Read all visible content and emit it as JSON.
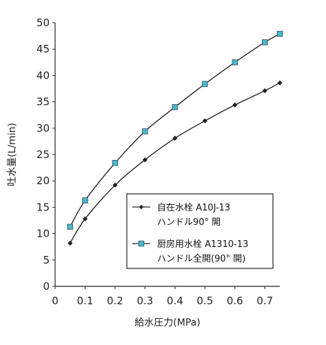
{
  "chart_data": {
    "type": "line",
    "title": "",
    "xlabel": "給水圧力(MPa)",
    "ylabel": "吐水量(L/min)",
    "xlim": [
      0,
      0.75
    ],
    "ylim": [
      0,
      50
    ],
    "x_ticks": [
      "0",
      "0.1",
      "0.2",
      "0.3",
      "0.4",
      "0.5",
      "0.6",
      "0.7"
    ],
    "y_ticks": [
      "0",
      "5",
      "10",
      "15",
      "20",
      "25",
      "30",
      "35",
      "40",
      "45",
      "50"
    ],
    "grid": false,
    "legend_position": "bottom-right",
    "series": [
      {
        "name_lines": [
          "自在水栓 A10J-13",
          "ハンドル90° 開"
        ],
        "marker": "diamond",
        "color": "#222222",
        "marker_color": "#222222",
        "x": [
          0.05,
          0.1,
          0.2,
          0.3,
          0.4,
          0.5,
          0.6,
          0.7,
          0.75
        ],
        "y": [
          8.2,
          12.8,
          19.2,
          24.0,
          28.1,
          31.4,
          34.4,
          37.1,
          38.6
        ]
      },
      {
        "name_lines": [
          "厨房用水栓 A1310-13",
          "ハンドル全開(90° 開)"
        ],
        "marker": "square",
        "color": "#222222",
        "marker_color": "#4ab8c8",
        "x": [
          0.05,
          0.1,
          0.2,
          0.3,
          0.4,
          0.5,
          0.6,
          0.7,
          0.75
        ],
        "y": [
          11.3,
          16.3,
          23.4,
          29.4,
          34.0,
          38.4,
          42.5,
          46.3,
          47.9
        ]
      }
    ]
  }
}
